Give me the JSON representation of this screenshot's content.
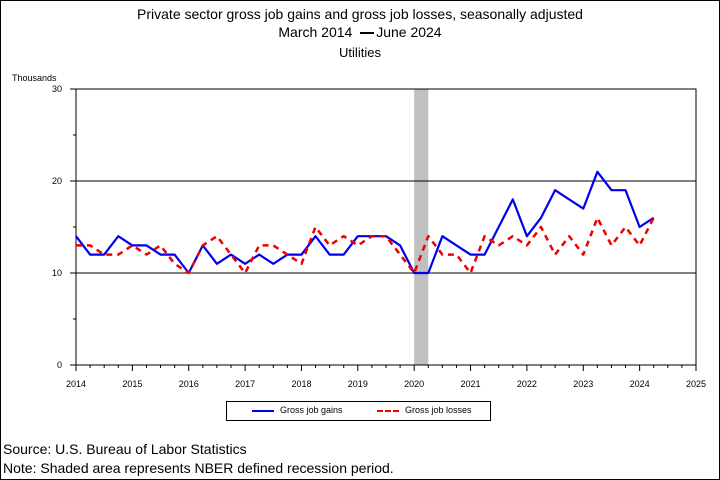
{
  "title": "Private sector gross job gains and gross job losses, seasonally adjusted",
  "period_start": "March 2014",
  "period_end": "June 2024",
  "subtitle": "Utilities",
  "units_label": "Thousands",
  "legend": {
    "gains": "Gross job gains",
    "losses": "Gross job losses"
  },
  "footnotes": {
    "source": "Source: U.S. Bureau of Labor Statistics",
    "note": "Note: Shaded area represents NBER defined recession period."
  },
  "chart_data": {
    "type": "line",
    "title": "Private sector gross job gains and gross job losses, seasonally adjusted",
    "subtitle": "Utilities",
    "ylabel": "Thousands",
    "ylim": [
      0,
      30
    ],
    "yticks": [
      0,
      10,
      20,
      30
    ],
    "xlim": [
      2014,
      2025
    ],
    "xticks": [
      "2014",
      "2015",
      "2016",
      "2017",
      "2018",
      "2019",
      "2020",
      "2021",
      "2022",
      "2023",
      "2024",
      "2025"
    ],
    "grid": "horizontal lines at 10 and 20",
    "legend_position": "bottom",
    "recession_shading": {
      "start": 2020.0,
      "end": 2020.25
    },
    "colors": {
      "gains": "#0000ee",
      "losses": "#ee0000",
      "recession": "#c0c0c0"
    },
    "x": [
      2014.0,
      2014.25,
      2014.5,
      2014.75,
      2015.0,
      2015.25,
      2015.5,
      2015.75,
      2016.0,
      2016.25,
      2016.5,
      2016.75,
      2017.0,
      2017.25,
      2017.5,
      2017.75,
      2018.0,
      2018.25,
      2018.5,
      2018.75,
      2019.0,
      2019.25,
      2019.5,
      2019.75,
      2020.0,
      2020.25,
      2020.5,
      2020.75,
      2021.0,
      2021.25,
      2021.5,
      2021.75,
      2022.0,
      2022.25,
      2022.5,
      2022.75,
      2023.0,
      2023.25,
      2023.5,
      2023.75,
      2024.0,
      2024.25
    ],
    "series": [
      {
        "name": "Gross job gains",
        "style": "solid",
        "values": [
          14,
          12,
          12,
          14,
          13,
          13,
          12,
          12,
          10,
          13,
          11,
          12,
          11,
          12,
          11,
          12,
          12,
          14,
          12,
          12,
          14,
          14,
          14,
          13,
          10,
          10,
          14,
          13,
          12,
          12,
          15,
          18,
          14,
          16,
          19,
          18,
          17,
          21,
          19,
          19,
          15,
          16
        ]
      },
      {
        "name": "Gross job losses",
        "style": "dashed",
        "values": [
          13,
          13,
          12,
          12,
          13,
          12,
          13,
          11,
          10,
          13,
          14,
          12,
          10,
          13,
          13,
          12,
          11,
          15,
          13,
          14,
          13,
          14,
          14,
          12,
          10,
          14,
          12,
          12,
          10,
          14,
          13,
          14,
          13,
          15,
          12,
          14,
          12,
          16,
          13,
          15,
          13,
          16
        ]
      }
    ]
  }
}
